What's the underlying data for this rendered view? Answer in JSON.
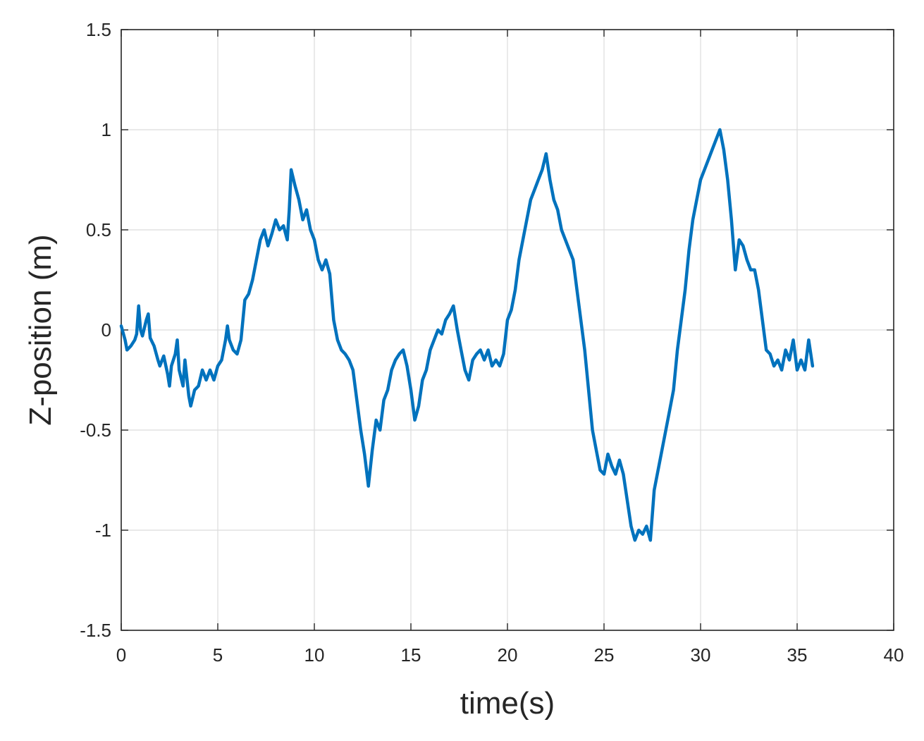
{
  "chart_data": {
    "type": "line",
    "title": "",
    "xlabel": "time(s)",
    "ylabel": "Z-position (m)",
    "xlim": [
      0,
      40
    ],
    "ylim": [
      -1.5,
      1.5
    ],
    "xticks": [
      0,
      5,
      10,
      15,
      20,
      25,
      30,
      35,
      40
    ],
    "yticks": [
      -1.5,
      -1,
      -0.5,
      0,
      0.5,
      1,
      1.5
    ],
    "xtick_labels": [
      "0",
      "5",
      "10",
      "15",
      "20",
      "25",
      "30",
      "35",
      "40"
    ],
    "ytick_labels": [
      "-1.5",
      "-1",
      "-0.5",
      "0",
      "0.5",
      "1",
      "1.5"
    ],
    "grid": true,
    "line_color": "#0072BD",
    "series": [
      {
        "x": [
          0.0,
          0.2,
          0.3,
          0.5,
          0.7,
          0.8,
          0.9,
          1.0,
          1.1,
          1.3,
          1.4,
          1.5,
          1.7,
          1.9,
          2.0,
          2.2,
          2.4,
          2.5,
          2.6,
          2.8,
          2.9,
          3.0,
          3.2,
          3.3,
          3.5,
          3.6,
          3.8,
          4.0,
          4.2,
          4.4,
          4.6,
          4.8,
          5.0,
          5.2,
          5.4,
          5.5,
          5.6,
          5.8,
          6.0,
          6.2,
          6.4,
          6.6,
          6.8,
          7.0,
          7.2,
          7.4,
          7.6,
          7.8,
          8.0,
          8.2,
          8.4,
          8.6,
          8.7,
          8.8,
          9.0,
          9.2,
          9.4,
          9.6,
          9.8,
          10.0,
          10.2,
          10.4,
          10.6,
          10.8,
          11.0,
          11.2,
          11.4,
          11.6,
          11.8,
          12.0,
          12.2,
          12.4,
          12.6,
          12.7,
          12.8,
          13.0,
          13.2,
          13.4,
          13.6,
          13.8,
          14.0,
          14.2,
          14.4,
          14.6,
          14.8,
          15.0,
          15.2,
          15.4,
          15.6,
          15.8,
          16.0,
          16.2,
          16.4,
          16.6,
          16.8,
          17.0,
          17.2,
          17.4,
          17.6,
          17.8,
          18.0,
          18.2,
          18.4,
          18.6,
          18.8,
          19.0,
          19.2,
          19.4,
          19.6,
          19.8,
          20.0,
          20.2,
          20.4,
          20.6,
          20.8,
          21.0,
          21.2,
          21.4,
          21.6,
          21.8,
          22.0,
          22.2,
          22.4,
          22.6,
          22.8,
          23.0,
          23.2,
          23.4,
          23.6,
          23.8,
          24.0,
          24.2,
          24.4,
          24.6,
          24.8,
          25.0,
          25.2,
          25.4,
          25.6,
          25.8,
          26.0,
          26.2,
          26.4,
          26.6,
          26.8,
          27.0,
          27.2,
          27.4,
          27.6,
          27.8,
          28.0,
          28.2,
          28.4,
          28.6,
          28.8,
          29.0,
          29.2,
          29.4,
          29.6,
          29.8,
          30.0,
          30.2,
          30.4,
          30.6,
          30.8,
          31.0,
          31.2,
          31.4,
          31.6,
          31.8,
          32.0,
          32.2,
          32.4,
          32.6,
          32.8,
          33.0,
          33.2,
          33.4,
          33.6,
          33.8,
          34.0,
          34.2,
          34.4,
          34.6,
          34.8,
          35.0,
          35.2,
          35.4,
          35.6,
          35.8
        ],
        "y": [
          0.02,
          -0.05,
          -0.1,
          -0.08,
          -0.05,
          -0.02,
          0.12,
          0.0,
          -0.03,
          0.05,
          0.08,
          -0.04,
          -0.08,
          -0.15,
          -0.18,
          -0.13,
          -0.22,
          -0.28,
          -0.18,
          -0.12,
          -0.05,
          -0.2,
          -0.28,
          -0.15,
          -0.33,
          -0.38,
          -0.3,
          -0.28,
          -0.2,
          -0.25,
          -0.2,
          -0.25,
          -0.18,
          -0.15,
          -0.05,
          0.02,
          -0.05,
          -0.1,
          -0.12,
          -0.05,
          0.15,
          0.18,
          0.25,
          0.35,
          0.45,
          0.5,
          0.42,
          0.48,
          0.55,
          0.5,
          0.52,
          0.45,
          0.6,
          0.8,
          0.72,
          0.65,
          0.55,
          0.6,
          0.5,
          0.45,
          0.35,
          0.3,
          0.35,
          0.28,
          0.05,
          -0.05,
          -0.1,
          -0.12,
          -0.15,
          -0.2,
          -0.35,
          -0.5,
          -0.62,
          -0.7,
          -0.78,
          -0.6,
          -0.45,
          -0.5,
          -0.35,
          -0.3,
          -0.2,
          -0.15,
          -0.12,
          -0.1,
          -0.18,
          -0.3,
          -0.45,
          -0.38,
          -0.25,
          -0.2,
          -0.1,
          -0.05,
          0.0,
          -0.02,
          0.05,
          0.08,
          0.12,
          0.0,
          -0.1,
          -0.2,
          -0.25,
          -0.15,
          -0.12,
          -0.1,
          -0.15,
          -0.1,
          -0.18,
          -0.15,
          -0.18,
          -0.12,
          0.05,
          0.1,
          0.2,
          0.35,
          0.45,
          0.55,
          0.65,
          0.7,
          0.75,
          0.8,
          0.88,
          0.75,
          0.65,
          0.6,
          0.5,
          0.45,
          0.4,
          0.35,
          0.2,
          0.05,
          -0.1,
          -0.3,
          -0.5,
          -0.6,
          -0.7,
          -0.72,
          -0.62,
          -0.68,
          -0.72,
          -0.65,
          -0.72,
          -0.85,
          -0.98,
          -1.05,
          -1.0,
          -1.02,
          -0.98,
          -1.05,
          -0.8,
          -0.7,
          -0.6,
          -0.5,
          -0.4,
          -0.3,
          -0.1,
          0.05,
          0.2,
          0.4,
          0.55,
          0.65,
          0.75,
          0.8,
          0.85,
          0.9,
          0.95,
          1.0,
          0.9,
          0.75,
          0.55,
          0.3,
          0.45,
          0.42,
          0.35,
          0.3,
          0.3,
          0.2,
          0.05,
          -0.1,
          -0.12,
          -0.18,
          -0.15,
          -0.2,
          -0.1,
          -0.15,
          -0.05,
          -0.2,
          -0.15,
          -0.2,
          -0.05,
          -0.18
        ]
      }
    ]
  }
}
